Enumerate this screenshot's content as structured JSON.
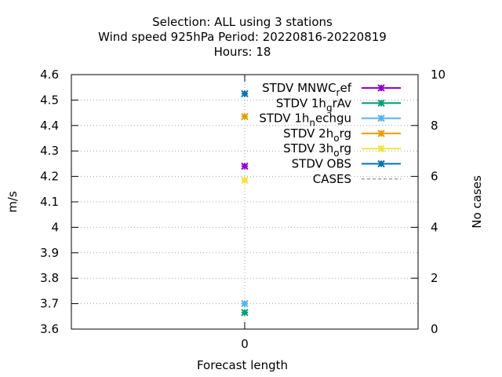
{
  "chart_data": {
    "type": "scatter",
    "title_lines": [
      "Selection: ALL using     3 stations",
      "Wind speed 925hPa   Period: 20220816-20220819",
      "Hours:  18"
    ],
    "xlabel": "Forecast length",
    "ylabel": "m/s",
    "y2label": "No cases",
    "x": [
      0
    ],
    "x_ticks": [
      "0"
    ],
    "ylim": [
      3.6,
      4.6
    ],
    "y_ticks": [
      "3.6",
      "3.7",
      "3.8",
      "3.9",
      "4",
      "4.1",
      "4.2",
      "4.3",
      "4.4",
      "4.5",
      "4.6"
    ],
    "y2lim": [
      0,
      10
    ],
    "y2_ticks": [
      "0",
      "2",
      "4",
      "6",
      "8",
      "10"
    ],
    "grid": true,
    "legend_position": "top-right",
    "series": [
      {
        "name": "STDV MNWC",
        "sub": "r",
        "suffix": "ef",
        "color": "#9400d3",
        "marker": "cross",
        "values": [
          4.24
        ]
      },
      {
        "name": "STDV 1h",
        "sub": "g",
        "suffix": "rAv",
        "color": "#009e73",
        "marker": "cross",
        "values": [
          3.665
        ]
      },
      {
        "name": "STDV 1h",
        "sub": "n",
        "suffix": "echgu",
        "color": "#56b4e9",
        "marker": "cross",
        "values": [
          3.7
        ]
      },
      {
        "name": "STDV 2h",
        "sub": "o",
        "suffix": "rg",
        "color": "#e69f00",
        "marker": "cross",
        "values": [
          4.435
        ]
      },
      {
        "name": "STDV 3h",
        "sub": "o",
        "suffix": "rg",
        "color": "#f0e442",
        "marker": "cross",
        "values": [
          4.185
        ]
      },
      {
        "name": "STDV OBS",
        "sub": "",
        "suffix": "",
        "color": "#0072b2",
        "marker": "cross",
        "values": [
          4.525
        ]
      },
      {
        "name": "CASES",
        "sub": "",
        "suffix": "",
        "color": "#a0a0a0",
        "marker": "none",
        "dashed": true,
        "axis": "y2",
        "values": []
      }
    ]
  }
}
